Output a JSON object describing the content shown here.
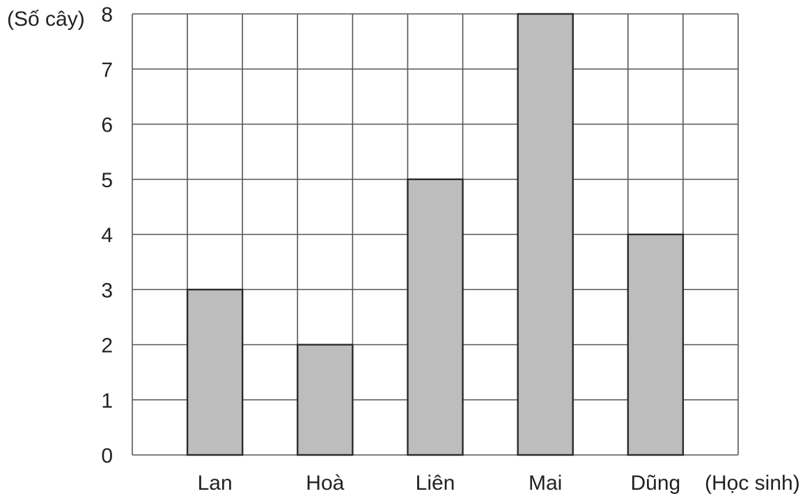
{
  "chart_data": {
    "type": "bar",
    "categories": [
      "Lan",
      "Hoà",
      "Liên",
      "Mai",
      "Dũng"
    ],
    "values": [
      3,
      2,
      5,
      8,
      4
    ],
    "title": "",
    "xlabel": "(Học sinh)",
    "ylabel": "(Số cây)",
    "ylim": [
      0,
      8
    ],
    "yticks": [
      "0",
      "1",
      "2",
      "3",
      "4",
      "5",
      "6",
      "7",
      "8"
    ],
    "grid": true,
    "colors": {
      "bar_fill": "#bdbdbd",
      "bar_stroke": "#2a2a2a",
      "grid": "#555555",
      "text": "#222222"
    }
  }
}
